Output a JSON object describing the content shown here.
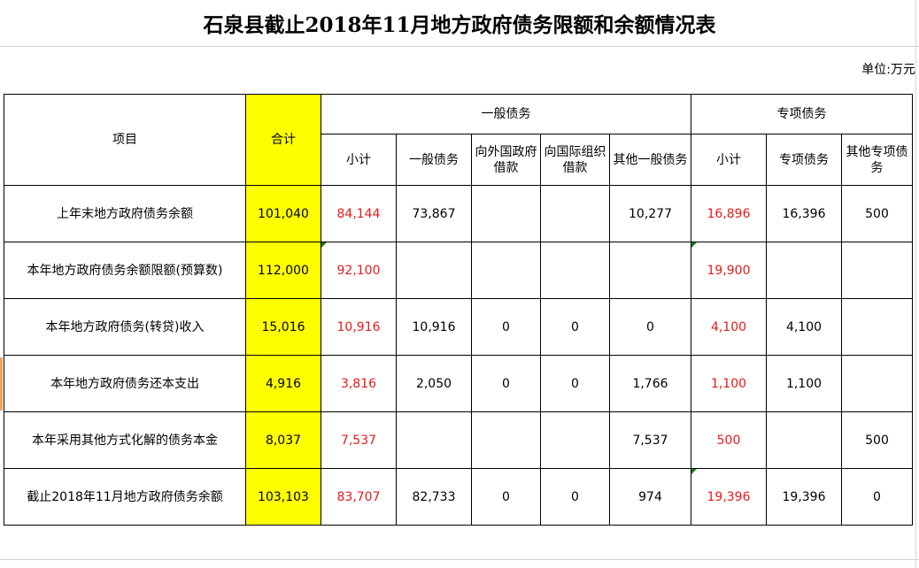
{
  "title": "石泉县截止2018年11月地方政府债务限额和余额情况表",
  "unit": "单位:万元",
  "headers": {
    "item": "项目",
    "total": "合计",
    "general_group": "一般债务",
    "special_group": "专项债务",
    "sub": [
      "小计",
      "一般债务",
      "向外国政府借款",
      "向国际组织借款",
      "其他一般债务",
      "小计",
      "专项债务",
      "其他专项债务"
    ]
  },
  "rows": [
    {
      "label": "上年末地方政府债务余额",
      "cells": [
        "101,040",
        "84,144",
        "73,867",
        "",
        "",
        "10,277",
        "16,896",
        "16,396",
        "500"
      ]
    },
    {
      "label": "本年地方政府债务余额限额(预算数)",
      "cells": [
        "112,000",
        "92,100",
        "",
        "",
        "",
        "",
        "19,900",
        "",
        ""
      ]
    },
    {
      "label": "本年地方政府债务(转贷)收入",
      "cells": [
        "15,016",
        "10,916",
        "10,916",
        "0",
        "0",
        "0",
        "4,100",
        "4,100",
        ""
      ]
    },
    {
      "label": "本年地方政府债务还本支出",
      "cells": [
        "4,916",
        "3,816",
        "2,050",
        "0",
        "0",
        "1,766",
        "1,100",
        "1,100",
        ""
      ]
    },
    {
      "label": "本年采用其他方式化解的债务本金",
      "cells": [
        "8,037",
        "7,537",
        "",
        "",
        "",
        "7,537",
        "500",
        "",
        "500"
      ]
    },
    {
      "label": "截止2018年11月地方政府债务余额",
      "cells": [
        "103,103",
        "83,707",
        "82,733",
        "0",
        "0",
        "974",
        "19,396",
        "19,396",
        "0"
      ]
    }
  ],
  "colors": {
    "highlight_fill": "#ffff00",
    "subtotal_text": "#e41a1a",
    "grid": "#d4d4d4",
    "comment_marker": "#1a7a1a"
  }
}
